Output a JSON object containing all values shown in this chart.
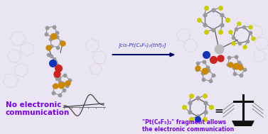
{
  "bg_color": "#e9e5f2",
  "arrow_label": "[cis-Pt(C₆F₅)₂(thf)₂]",
  "left_text_line1": "No electronic",
  "left_text_line2": "communication",
  "right_text_line1": "\"Pt(C₆F₅)₂\" fragment allows",
  "right_text_line2": "the electronic communication",
  "text_color": "#7700ee",
  "arrow_color": "#000066",
  "arrow_label_color": "#3333bb",
  "figsize": [
    3.77,
    1.89
  ],
  "dpi": 100,
  "xlim": [
    0,
    377
  ],
  "ylim": [
    0,
    189
  ],
  "mol_gray": "#999999",
  "mol_gray_dark": "#555555",
  "mol_orange": "#cc8800",
  "mol_blue": "#1133bb",
  "mol_red": "#cc2222",
  "mol_yellow": "#cccc00",
  "mol_bond": "#666666",
  "ghost_color": "#d4d0c0",
  "cv_color": "#444444",
  "pole_color": "#111111"
}
